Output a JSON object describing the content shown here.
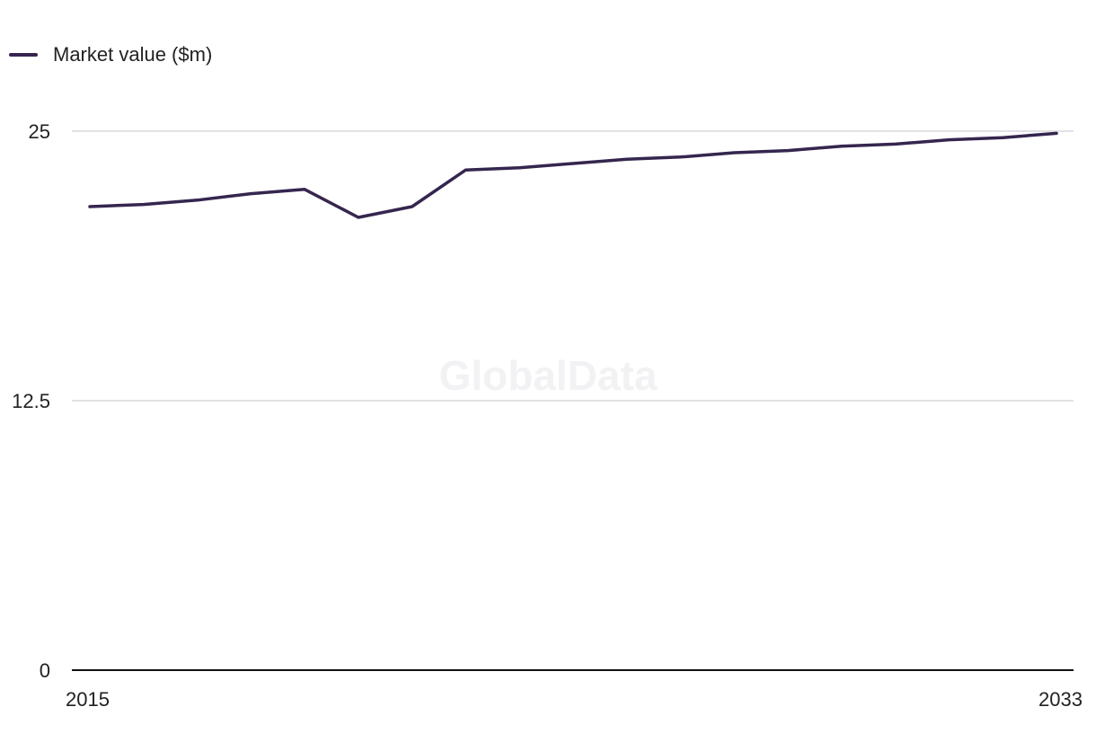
{
  "watermark": "GlobalData",
  "chart_data": {
    "type": "line",
    "title": "",
    "xlabel": "",
    "ylabel": "",
    "x": [
      2015,
      2016,
      2017,
      2018,
      2019,
      2020,
      2021,
      2022,
      2023,
      2024,
      2025,
      2026,
      2027,
      2028,
      2029,
      2030,
      2031,
      2032,
      2033
    ],
    "series": [
      {
        "name": "Market value ($m)",
        "color": "#35264f",
        "values": [
          21.5,
          21.6,
          21.8,
          22.1,
          22.3,
          21.0,
          21.5,
          23.2,
          23.3,
          23.5,
          23.7,
          23.8,
          24.0,
          24.1,
          24.3,
          24.4,
          24.6,
          24.7,
          24.9
        ]
      }
    ],
    "ylim": [
      0,
      25
    ],
    "y_ticks": [
      {
        "value": 0,
        "label": "0"
      },
      {
        "value": 12.5,
        "label": "12.5"
      },
      {
        "value": 25,
        "label": "25"
      }
    ],
    "x_tick_labels": [
      {
        "value": 2015,
        "label": "2015"
      },
      {
        "value": 2033,
        "label": "2033"
      }
    ],
    "grid": true,
    "legend_position": "top-left",
    "gridline_color": "#d9d9dd",
    "axis_color": "#111111"
  }
}
